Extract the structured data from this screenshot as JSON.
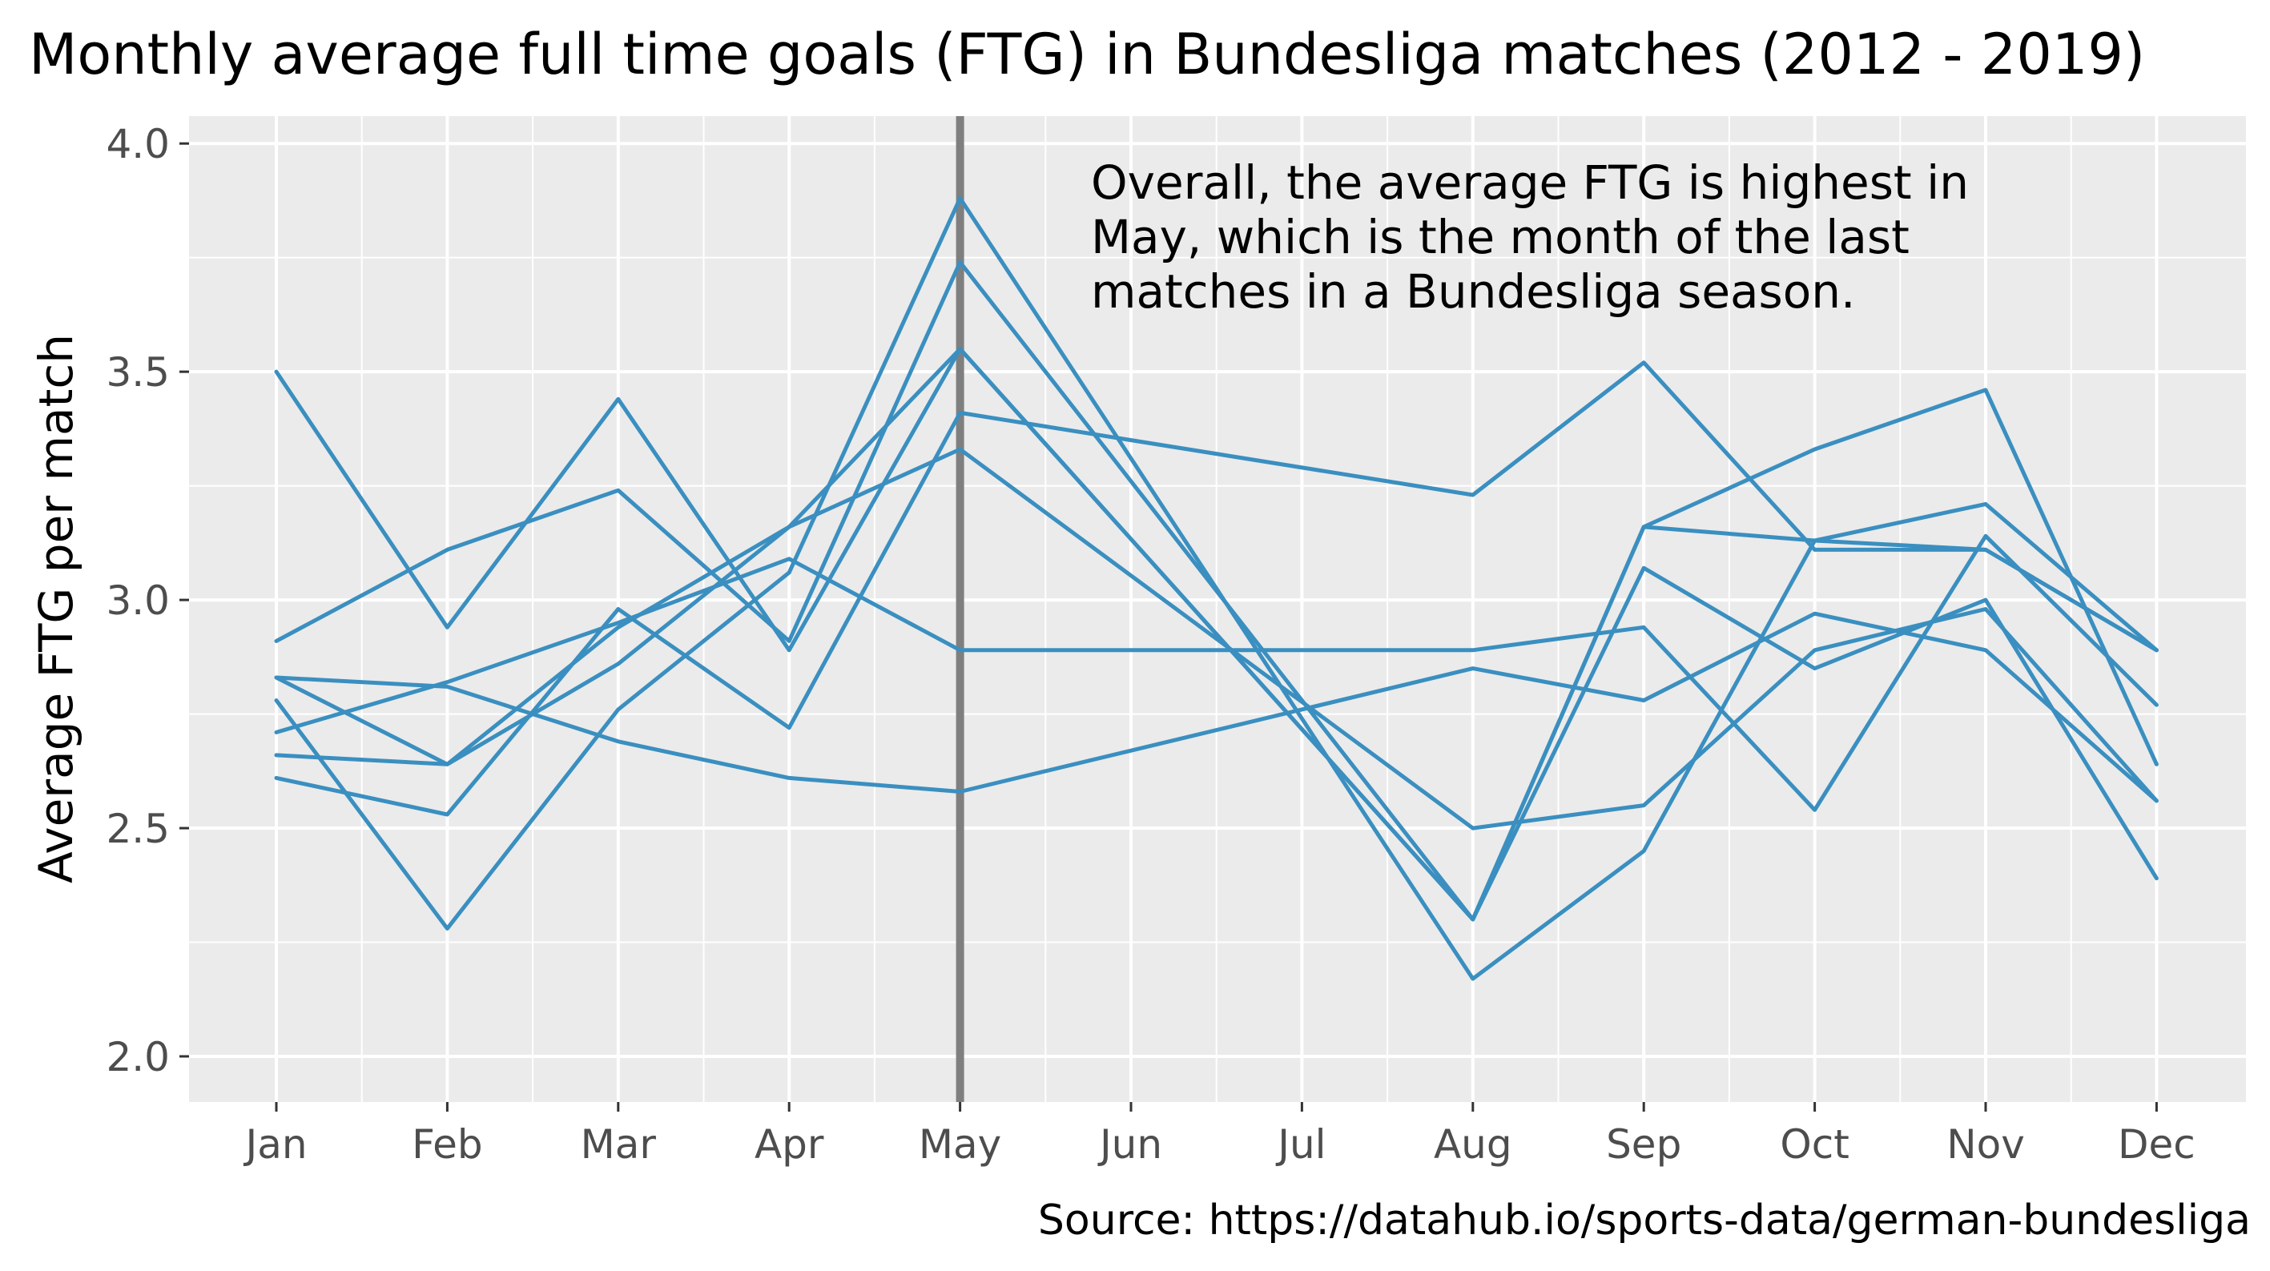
{
  "chart_data": {
    "type": "line",
    "title": "Monthly average full time goals (FTG) in Bundesliga matches (2012 - 2019)",
    "ylabel": "Average FTG per match",
    "xlabel": "",
    "caption": "Source: https://datahub.io/sports-data/german-bundesliga",
    "annotation_lines": [
      "Overall, the average FTG is highest in",
      "May, which is the month of the last",
      "matches in a Bundesliga season."
    ],
    "categories": [
      "Jan",
      "Feb",
      "Mar",
      "Apr",
      "May",
      "Jun",
      "Jul",
      "Aug",
      "Sep",
      "Oct",
      "Nov",
      "Dec"
    ],
    "ylim": [
      1.9,
      4.06
    ],
    "yticks": [
      "2.0",
      "2.5",
      "3.0",
      "3.5",
      "4.0"
    ],
    "grid": true,
    "legend": "none",
    "highlight_month": "May",
    "colors": {
      "panel": "#ebebeb",
      "grid": "#ffffff",
      "line": "#3a8fc0",
      "highlight": "#7f7f7f"
    },
    "series": [
      {
        "x": [
          "Jan",
          "Feb",
          "Mar",
          "Apr",
          "May",
          "Aug",
          "Sep",
          "Oct",
          "Nov",
          "Dec"
        ],
        "values": [
          3.5,
          2.94,
          3.44,
          2.89,
          3.55,
          2.3,
          3.07,
          2.85,
          3.0,
          2.39
        ]
      },
      {
        "x": [
          "Jan",
          "Feb",
          "Mar",
          "Apr",
          "May",
          "Aug",
          "Sep",
          "Oct",
          "Nov",
          "Dec"
        ],
        "values": [
          2.91,
          3.11,
          3.24,
          2.91,
          3.74,
          2.3,
          3.16,
          3.33,
          3.46,
          2.64
        ]
      },
      {
        "x": [
          "Jan",
          "Feb",
          "Mar",
          "Apr",
          "May",
          "Aug",
          "Sep",
          "Oct",
          "Nov",
          "Dec"
        ],
        "values": [
          2.83,
          2.81,
          2.69,
          2.61,
          2.58,
          2.85,
          2.78,
          2.97,
          2.89,
          2.56
        ]
      },
      {
        "x": [
          "Jan",
          "Feb",
          "Mar",
          "Apr",
          "May",
          "Aug",
          "Sep",
          "Oct",
          "Nov",
          "Dec"
        ],
        "values": [
          2.78,
          2.28,
          2.76,
          3.06,
          3.88,
          2.17,
          2.45,
          3.13,
          3.21,
          2.89
        ]
      },
      {
        "x": [
          "Jan",
          "Feb",
          "Mar",
          "Apr",
          "May",
          "Aug",
          "Sep",
          "Oct",
          "Nov",
          "Dec"
        ],
        "values": [
          2.71,
          2.82,
          2.95,
          3.09,
          2.89,
          2.89,
          2.94,
          2.54,
          3.14,
          2.77
        ]
      },
      {
        "x": [
          "Jan",
          "Feb",
          "Mar",
          "Apr",
          "May",
          "Aug",
          "Sep",
          "Oct",
          "Nov",
          "Dec"
        ],
        "values": [
          2.61,
          2.53,
          2.98,
          2.72,
          3.41,
          3.23,
          3.52,
          3.11,
          3.11,
          2.89
        ]
      },
      {
        "x": [
          "Jan",
          "Feb",
          "Mar",
          "Apr",
          "May",
          "Aug",
          "Sep",
          "Oct",
          "Nov",
          "Dec"
        ],
        "values": [
          2.66,
          2.64,
          2.94,
          3.16,
          3.33,
          2.5,
          2.55,
          2.89,
          2.98,
          2.56
        ]
      },
      {
        "x": [
          "Jan",
          "Feb",
          "Mar",
          "Apr",
          "May",
          "Aug",
          "Sep",
          "Oct",
          "Nov",
          "Dec"
        ],
        "values": [
          2.83,
          2.64,
          2.86,
          3.16,
          3.55,
          2.3,
          3.16,
          3.13,
          3.11,
          2.89
        ]
      }
    ]
  }
}
